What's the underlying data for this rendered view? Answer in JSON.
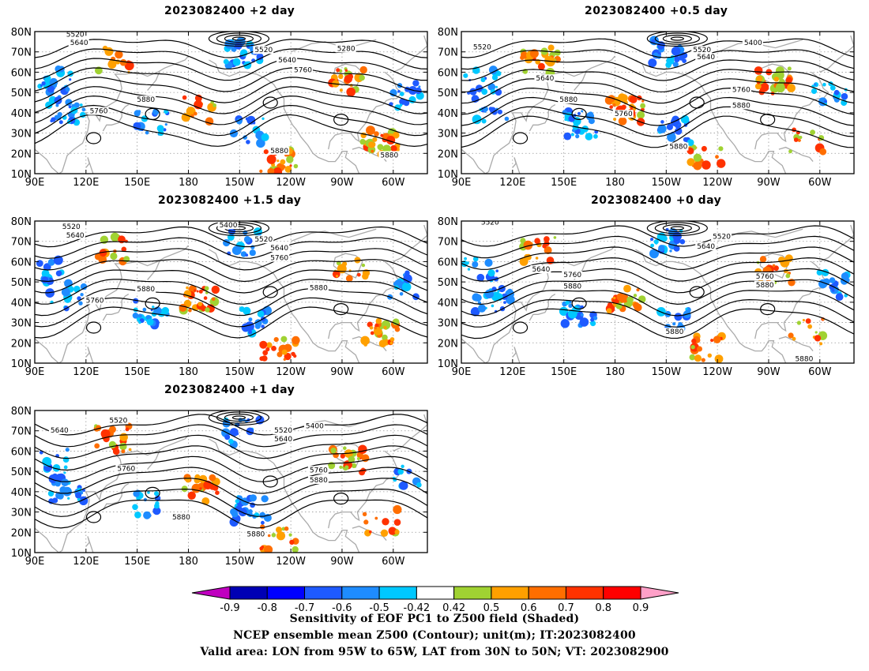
{
  "panels": [
    {
      "title": "2023082400 +2 day"
    },
    {
      "title": "2023082400 +0.5 day"
    },
    {
      "title": "2023082400 +1.5 day"
    },
    {
      "title": "2023082400 +0 day"
    },
    {
      "title": "2023082400 +1 day"
    }
  ],
  "lat_ticks": [
    "80N",
    "70N",
    "60N",
    "50N",
    "40N",
    "30N",
    "20N",
    "10N"
  ],
  "lon_ticks": [
    "90E",
    "120E",
    "150E",
    "180",
    "150W",
    "120W",
    "90W",
    "60W"
  ],
  "map_extent": {
    "lon_min": 90,
    "lon_max": 320,
    "lat_min": 10,
    "lat_max": 80
  },
  "contour_levels": [
    "5280",
    "5400",
    "5520",
    "5640",
    "5760",
    "5880"
  ],
  "contour_labels": [
    [
      "5520",
      "5640",
      "5280",
      "5520",
      "5640",
      "5760",
      "5880",
      "5760",
      "5880",
      "5880"
    ],
    [
      "5520",
      "5400",
      "5520",
      "5640",
      "5640",
      "5880",
      "5760",
      "5760",
      "5880",
      "5880"
    ],
    [
      "5520",
      "5640",
      "5400",
      "5520",
      "5640",
      "5760",
      "5760",
      "5880",
      "5880"
    ],
    [
      "5520",
      "5520",
      "5640",
      "5640",
      "5760",
      "5880",
      "5760",
      "5880",
      "5880",
      "5880"
    ],
    [
      "5520",
      "5640",
      "5400",
      "5520",
      "5640",
      "5760",
      "5760",
      "5880",
      "5880",
      "5880"
    ]
  ],
  "colorbar": {
    "ticks": [
      "-0.9",
      "-0.8",
      "-0.7",
      "-0.6",
      "-0.5",
      "-0.42",
      "0.42",
      "0.5",
      "0.6",
      "0.7",
      "0.8",
      "0.9"
    ],
    "colors": [
      "#c000c0",
      "#0000b4",
      "#0000ff",
      "#1e5aff",
      "#1e8cff",
      "#00c8ff",
      "#ffffff",
      "#a0d232",
      "#ffa000",
      "#ff6e00",
      "#ff3200",
      "#ff0000",
      "#ffa0c8"
    ]
  },
  "captions": {
    "line1": "Sensitivity of EOF PC1 to Z500 field (Shaded)",
    "line2": "NCEP ensemble mean Z500 (Contour); unit(m); IT:2023082400",
    "line3": "Valid area: LON from 95W to 65W, LAT from 30N to 50N; VT: 2023082900"
  }
}
